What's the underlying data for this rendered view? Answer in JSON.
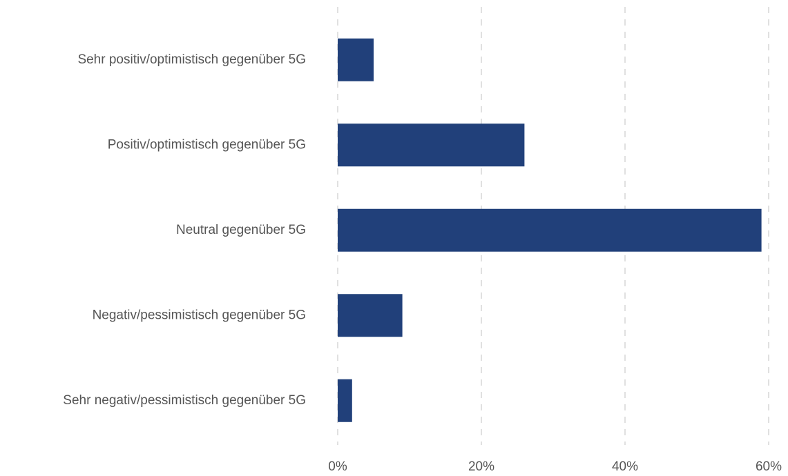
{
  "chart_data": {
    "type": "bar",
    "orientation": "horizontal",
    "categories": [
      "Sehr positiv/optimistisch gegenüber 5G",
      "Positiv/optimistisch gegenüber 5G",
      "Neutral gegenüber 5G",
      "Negativ/pessimistisch gegenüber 5G",
      "Sehr negativ/pessimistisch gegenüber 5G"
    ],
    "values": [
      5,
      26,
      59,
      9,
      2
    ],
    "color": "#21407a",
    "xlim": [
      0,
      60
    ],
    "xticks": [
      {
        "value": 0,
        "label": "0%"
      },
      {
        "value": 20,
        "label": "20%"
      },
      {
        "value": 40,
        "label": "40%"
      },
      {
        "value": 60,
        "label": "60%"
      }
    ],
    "grid": true
  }
}
